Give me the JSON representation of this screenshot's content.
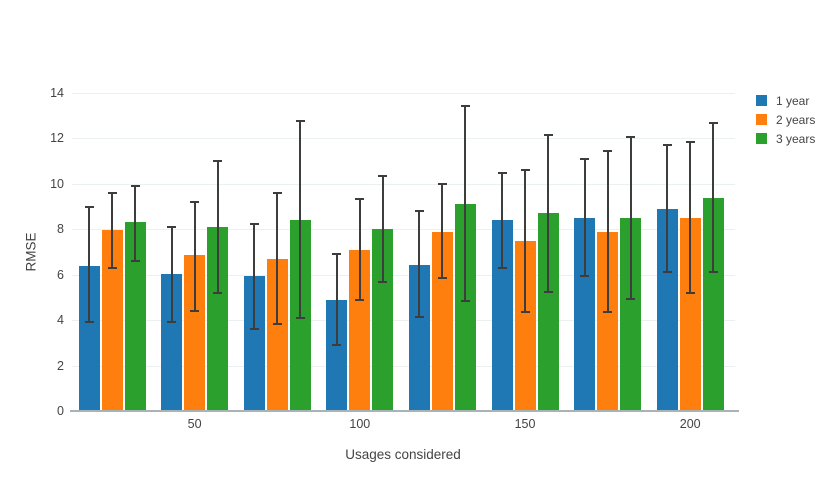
{
  "chart_data": {
    "type": "bar",
    "title": "",
    "xlabel": "Usages considered",
    "ylabel": "RMSE",
    "x": [
      25,
      50,
      75,
      100,
      125,
      150,
      175,
      200
    ],
    "xtick_labels": [
      "50",
      "100",
      "150",
      "200"
    ],
    "xtick_values": [
      50,
      100,
      150,
      200
    ],
    "ylim": [
      0,
      14
    ],
    "ytick_step": 2,
    "grid": true,
    "legend_position": "top-right",
    "error_bar_color": "#3d3d3d",
    "axis_text_color": "#444444",
    "series": [
      {
        "name": "1 year",
        "color": "#1f77b4",
        "values": [
          6.4,
          6.05,
          5.95,
          4.9,
          6.45,
          8.4,
          8.5,
          8.9
        ],
        "error_low": [
          3.9,
          3.9,
          3.6,
          2.9,
          4.15,
          6.3,
          5.95,
          6.1
        ],
        "error_high": [
          9.0,
          8.1,
          8.25,
          6.9,
          8.8,
          10.5,
          11.1,
          11.7
        ]
      },
      {
        "name": "2 years",
        "color": "#ff7f0e",
        "values": [
          7.95,
          6.85,
          6.7,
          7.1,
          7.9,
          7.5,
          7.9,
          8.5
        ],
        "error_low": [
          6.3,
          4.4,
          3.85,
          4.9,
          5.85,
          4.35,
          4.35,
          5.2
        ],
        "error_high": [
          9.6,
          9.2,
          9.6,
          9.35,
          10.0,
          10.6,
          11.45,
          11.85
        ]
      },
      {
        "name": "3 years",
        "color": "#2ca02c",
        "values": [
          8.3,
          8.1,
          8.4,
          8.0,
          9.1,
          8.7,
          8.5,
          9.4
        ],
        "error_low": [
          6.6,
          5.2,
          4.1,
          5.7,
          4.85,
          5.25,
          4.95,
          6.1
        ],
        "error_high": [
          9.9,
          11.0,
          12.75,
          10.35,
          13.45,
          12.15,
          12.05,
          12.7
        ]
      }
    ]
  }
}
